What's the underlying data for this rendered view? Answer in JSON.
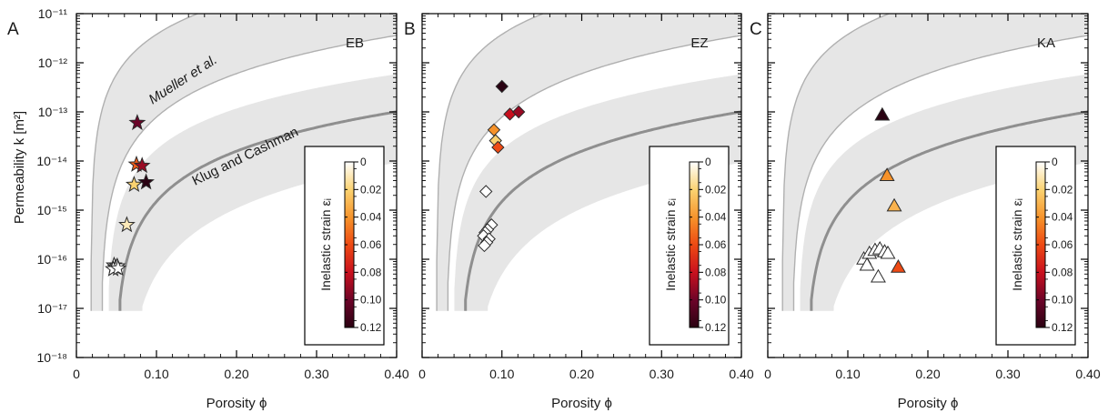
{
  "chart_data": [
    {
      "type": "scatter",
      "panel_letter": "A",
      "sample_label": "EB",
      "marker": "star",
      "xlabel": "Porosity ϕ",
      "ylabel": "Permeability k [m²]",
      "xlim": [
        0,
        0.4
      ],
      "ylim_log10": [
        -18,
        -11
      ],
      "x_ticks": [
        "0",
        "0.10",
        "0.20",
        "0.30",
        "0.40"
      ],
      "y_ticks": [
        "10⁻¹⁸",
        "10⁻¹⁷",
        "10⁻¹⁶",
        "10⁻¹⁵",
        "10⁻¹⁴",
        "10⁻¹³",
        "10⁻¹²",
        "10⁻¹¹"
      ],
      "curve_labels": [
        "Mueller et al.",
        "Klug and Cashman"
      ],
      "colorbar": {
        "label": "Inelastic strain εᵢ",
        "range": [
          0,
          0.12
        ],
        "ticks": [
          "0",
          "0.02",
          "0.04",
          "0.06",
          "0.08",
          "0.10",
          "0.12"
        ]
      },
      "points": [
        {
          "x": 0.076,
          "y": 6e-14,
          "strain": 0.1
        },
        {
          "x": 0.075,
          "y": 8.5e-15,
          "strain": 0.055
        },
        {
          "x": 0.082,
          "y": 8e-15,
          "strain": 0.09
        },
        {
          "x": 0.072,
          "y": 3.3e-15,
          "strain": 0.02
        },
        {
          "x": 0.087,
          "y": 3.7e-15,
          "strain": 0.12
        },
        {
          "x": 0.063,
          "y": 5e-16,
          "strain": 0.01
        },
        {
          "x": 0.047,
          "y": 7.5e-17,
          "strain": 0.0
        },
        {
          "x": 0.049,
          "y": 6.8e-17,
          "strain": 0.0
        },
        {
          "x": 0.051,
          "y": 7.2e-17,
          "strain": 0.0
        },
        {
          "x": 0.046,
          "y": 6.3e-17,
          "strain": 0.0
        },
        {
          "x": 0.052,
          "y": 6.5e-17,
          "strain": 0.0
        }
      ]
    },
    {
      "type": "scatter",
      "panel_letter": "B",
      "sample_label": "EZ",
      "marker": "diamond",
      "xlabel": "Porosity ϕ",
      "xlim": [
        0,
        0.4
      ],
      "ylim_log10": [
        -18,
        -11
      ],
      "x_ticks": [
        "0",
        "0.10",
        "0.20",
        "0.30",
        "0.40"
      ],
      "colorbar": {
        "label": "Inelastic strain εᵢ",
        "range": [
          0,
          0.12
        ],
        "ticks": [
          "0",
          "0.02",
          "0.04",
          "0.06",
          "0.08",
          "0.10",
          "0.12"
        ]
      },
      "points": [
        {
          "x": 0.1,
          "y": 3.3e-13,
          "strain": 0.12
        },
        {
          "x": 0.11,
          "y": 9e-14,
          "strain": 0.08
        },
        {
          "x": 0.121,
          "y": 1e-13,
          "strain": 0.09
        },
        {
          "x": 0.09,
          "y": 4.3e-14,
          "strain": 0.04
        },
        {
          "x": 0.092,
          "y": 2.6e-14,
          "strain": 0.02
        },
        {
          "x": 0.095,
          "y": 1.9e-14,
          "strain": 0.06
        },
        {
          "x": 0.08,
          "y": 2.4e-15,
          "strain": 0.0
        },
        {
          "x": 0.087,
          "y": 5e-16,
          "strain": 0.0
        },
        {
          "x": 0.082,
          "y": 4e-16,
          "strain": 0.0
        },
        {
          "x": 0.079,
          "y": 3.5e-16,
          "strain": 0.0
        },
        {
          "x": 0.077,
          "y": 3e-16,
          "strain": 0.0
        },
        {
          "x": 0.084,
          "y": 2.6e-16,
          "strain": 0.0
        },
        {
          "x": 0.081,
          "y": 2.2e-16,
          "strain": 0.0
        },
        {
          "x": 0.078,
          "y": 1.9e-16,
          "strain": 0.0
        }
      ]
    },
    {
      "type": "scatter",
      "panel_letter": "C",
      "sample_label": "KA",
      "marker": "triangle",
      "xlabel": "Porosity ϕ",
      "xlim": [
        0,
        0.4
      ],
      "ylim_log10": [
        -18,
        -11
      ],
      "x_ticks": [
        "0",
        "0.10",
        "0.20",
        "0.30",
        "0.40"
      ],
      "colorbar": {
        "label": "Inelastic strain εᵢ",
        "range": [
          0,
          0.12
        ],
        "ticks": [
          "0",
          "0.02",
          "0.04",
          "0.06",
          "0.08",
          "0.10",
          "0.12"
        ]
      },
      "points": [
        {
          "x": 0.143,
          "y": 8.5e-14,
          "strain": 0.12
        },
        {
          "x": 0.149,
          "y": 5e-15,
          "strain": 0.04
        },
        {
          "x": 0.158,
          "y": 1.2e-15,
          "strain": 0.03
        },
        {
          "x": 0.163,
          "y": 6.8e-17,
          "strain": 0.06
        },
        {
          "x": 0.12,
          "y": 1e-16,
          "strain": 0.0
        },
        {
          "x": 0.127,
          "y": 1.3e-16,
          "strain": 0.0
        },
        {
          "x": 0.134,
          "y": 1.5e-16,
          "strain": 0.0
        },
        {
          "x": 0.14,
          "y": 1.6e-16,
          "strain": 0.0
        },
        {
          "x": 0.146,
          "y": 1.4e-16,
          "strain": 0.0
        },
        {
          "x": 0.15,
          "y": 1.3e-16,
          "strain": 0.0
        },
        {
          "x": 0.124,
          "y": 7.5e-17,
          "strain": 0.0
        },
        {
          "x": 0.138,
          "y": 4.3e-17,
          "strain": 0.0
        }
      ]
    }
  ],
  "colors": {
    "band_fill": "#e6e6e6",
    "mueller_line": "#b0b0b0",
    "klug_line": "#8f8f8f",
    "axis": "#000000",
    "marker_stroke": "#2b2b2b",
    "colormap": [
      "#ffffff",
      "#fbeea0",
      "#f9c35a",
      "#f08a2c",
      "#e63a1b",
      "#b0123c",
      "#3a0320"
    ]
  }
}
